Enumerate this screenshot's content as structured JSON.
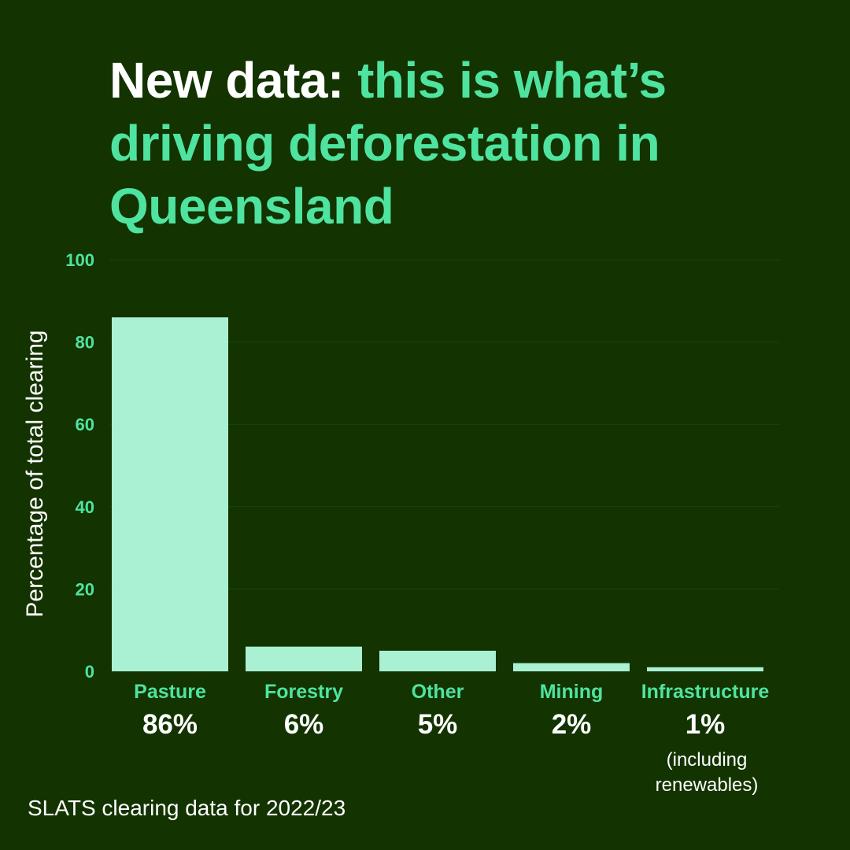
{
  "title": {
    "part1": "New data:",
    "part2": "this is what’s driving deforestation in Queensland"
  },
  "colors": {
    "background": "#133300",
    "accent": "#4fe3a0",
    "bar": "#aaf0d2",
    "text": "#ffffff",
    "grid": "#1d4410"
  },
  "chart_data": {
    "type": "bar",
    "title": "New data: this is what’s driving deforestation in Queensland",
    "xlabel": "",
    "ylabel": "Percentage of total clearing",
    "ylim": [
      0,
      100
    ],
    "yticks": [
      0,
      20,
      40,
      60,
      80,
      100
    ],
    "grid": true,
    "categories": [
      "Pasture",
      "Forestry",
      "Other",
      "Mining",
      "Infrastructure"
    ],
    "values": [
      86,
      6,
      5,
      2,
      1
    ],
    "value_labels": [
      "86%",
      "6%",
      "5%",
      "2%",
      "1%"
    ],
    "notes": [
      "",
      "",
      "",
      "",
      "(including renewables)"
    ],
    "note_lines": [
      [],
      [],
      [],
      [],
      [
        "(including",
        "renewables)"
      ]
    ]
  },
  "source": "SLATS clearing data for 2022/23"
}
